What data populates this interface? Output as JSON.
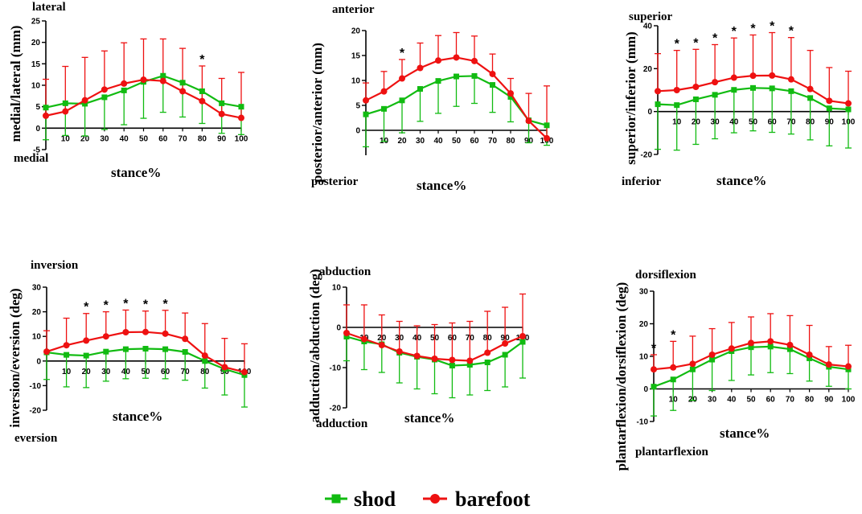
{
  "legend": {
    "shod_label": "shod",
    "barefoot_label": "barefoot",
    "shod_color": "#11bb11",
    "barefoot_color": "#ee1111"
  },
  "chart_data": [
    {
      "type": "line",
      "id": "ml",
      "ylabel": "medial/lateral (mm)",
      "xlabel": "stance%",
      "top_label": "lateral",
      "bottom_label": "medial",
      "ylim": [
        -5,
        25
      ],
      "yticks": [
        -5,
        0,
        5,
        10,
        15,
        20,
        25
      ],
      "x": [
        0,
        10,
        20,
        30,
        40,
        50,
        60,
        70,
        80,
        90,
        100
      ],
      "xtick_labels": [
        "10",
        "20",
        "30",
        "40",
        "50",
        "60",
        "70",
        "80",
        "90",
        "100"
      ],
      "significant_x": [
        80
      ],
      "series": [
        {
          "name": "shod",
          "values": [
            4.8,
            5.8,
            5.7,
            7.2,
            8.8,
            10.8,
            12.2,
            10.6,
            8.6,
            5.8,
            5.0
          ],
          "sd": [
            7.5,
            7.5,
            7.5,
            7.5,
            8.0,
            8.5,
            8.5,
            8.0,
            7.5,
            7.0,
            6.5
          ]
        },
        {
          "name": "barefoot",
          "values": [
            2.9,
            3.9,
            6.5,
            9.0,
            10.4,
            11.3,
            11.0,
            8.6,
            6.3,
            3.3,
            2.4
          ],
          "sd": [
            8.5,
            10.5,
            10.0,
            9.0,
            9.5,
            9.5,
            9.8,
            10.0,
            8.2,
            8.3,
            10.6
          ]
        }
      ]
    },
    {
      "type": "line",
      "id": "pa",
      "ylabel": "posterior/anterior (mm)",
      "xlabel": "stance%",
      "top_label": "anterior",
      "bottom_label": "posterior",
      "ylim": [
        -5,
        20
      ],
      "yticks": [
        0,
        5,
        10,
        15,
        20
      ],
      "x": [
        0,
        10,
        20,
        30,
        40,
        50,
        60,
        70,
        80,
        90,
        100
      ],
      "xtick_labels": [
        "10",
        "20",
        "30",
        "40",
        "50",
        "60",
        "70",
        "80",
        "90",
        "100"
      ],
      "significant_x": [
        20
      ],
      "series": [
        {
          "name": "shod",
          "values": [
            3.2,
            4.3,
            6.0,
            8.3,
            9.9,
            10.8,
            10.9,
            9.1,
            6.7,
            2.0,
            1.0
          ],
          "sd": [
            6.5,
            6.5,
            6.5,
            6.5,
            6.5,
            6.0,
            5.5,
            5.5,
            5.0,
            4.5,
            4.0
          ]
        },
        {
          "name": "barefoot",
          "values": [
            6.0,
            7.8,
            10.4,
            12.5,
            14.0,
            14.6,
            13.9,
            11.3,
            7.4,
            1.9,
            -1.6
          ],
          "sd": [
            3.5,
            4.0,
            3.8,
            5.0,
            5.0,
            5.0,
            5.0,
            4.0,
            3.0,
            5.5,
            10.5
          ]
        }
      ]
    },
    {
      "type": "line",
      "id": "si",
      "ylabel": "superior/inferior (mm)",
      "xlabel": "stance%",
      "top_label": "superior",
      "bottom_label": "inferior",
      "ylim": [
        -20,
        40
      ],
      "yticks": [
        -20,
        0,
        20,
        40
      ],
      "x": [
        0,
        10,
        20,
        30,
        40,
        50,
        60,
        70,
        80,
        90,
        100
      ],
      "xtick_labels": [
        "10",
        "20",
        "30",
        "40",
        "50",
        "60",
        "70",
        "80",
        "90",
        "100"
      ],
      "significant_x": [
        10,
        20,
        30,
        40,
        50,
        60,
        70
      ],
      "series": [
        {
          "name": "shod",
          "values": [
            3.4,
            3.0,
            5.7,
            7.8,
            10.1,
            11.0,
            10.8,
            9.5,
            6.3,
            1.5,
            1.0
          ],
          "sd": [
            21.0,
            21.0,
            21.0,
            20.5,
            20.0,
            20.0,
            20.5,
            20.0,
            19.5,
            17.5,
            18.0
          ]
        },
        {
          "name": "barefoot",
          "values": [
            9.5,
            10.0,
            11.5,
            13.7,
            15.8,
            16.7,
            16.8,
            15.0,
            10.5,
            5.0,
            3.8
          ],
          "sd": [
            17.5,
            18.5,
            17.5,
            17.5,
            18.5,
            19.0,
            20.0,
            19.5,
            18.0,
            15.5,
            15.0
          ]
        }
      ]
    },
    {
      "type": "line",
      "id": "ie",
      "ylabel": "inversion/eversion (deg)",
      "xlabel": "stance%",
      "top_label": "inversion",
      "bottom_label": "eversion",
      "ylim": [
        -20,
        30
      ],
      "yticks": [
        -20,
        -10,
        0,
        10,
        20,
        30
      ],
      "x": [
        0,
        10,
        20,
        30,
        40,
        50,
        60,
        70,
        80,
        90,
        100
      ],
      "xtick_labels": [
        "10",
        "20",
        "30",
        "40",
        "50",
        "60",
        "70",
        "80",
        "90",
        "100"
      ],
      "significant_x": [
        20,
        30,
        40,
        50,
        60
      ],
      "series": [
        {
          "name": "shod",
          "values": [
            3.5,
            2.5,
            2.2,
            3.8,
            4.8,
            5.0,
            4.8,
            3.7,
            0.0,
            -3.3,
            -5.7
          ],
          "sd": [
            11.0,
            13.0,
            13.0,
            12.0,
            12.0,
            12.0,
            12.0,
            11.5,
            11.0,
            10.5,
            13.0
          ]
        },
        {
          "name": "barefoot",
          "values": [
            3.8,
            6.4,
            8.3,
            10.0,
            11.7,
            11.8,
            11.1,
            9.0,
            2.2,
            -2.5,
            -4.5
          ],
          "sd": [
            8.5,
            11.0,
            11.0,
            10.0,
            9.0,
            8.5,
            9.5,
            10.5,
            13.0,
            11.7,
            11.5
          ]
        }
      ]
    },
    {
      "type": "line",
      "id": "aa",
      "ylabel": "adduction/abduction (deg)",
      "xlabel": "stance%",
      "top_label": "abduction",
      "bottom_label": "adduction",
      "ylim": [
        -20,
        10
      ],
      "yticks": [
        -20,
        -10,
        0,
        10
      ],
      "x": [
        0,
        10,
        20,
        30,
        40,
        50,
        60,
        70,
        80,
        90,
        100
      ],
      "xtick_labels": [
        "10",
        "20",
        "30",
        "40",
        "50",
        "60",
        "70",
        "80",
        "90",
        "100"
      ],
      "significant_x": [],
      "series": [
        {
          "name": "shod",
          "values": [
            -2.3,
            -3.5,
            -4.2,
            -6.3,
            -7.3,
            -8.0,
            -9.5,
            -9.3,
            -8.7,
            -6.8,
            -3.6
          ],
          "sd": [
            6.0,
            7.0,
            7.0,
            7.5,
            8.0,
            8.5,
            8.0,
            7.5,
            7.0,
            8.0,
            9.0
          ]
        },
        {
          "name": "barefoot",
          "values": [
            -1.4,
            -2.9,
            -4.4,
            -6.0,
            -7.1,
            -7.8,
            -8.1,
            -8.3,
            -6.3,
            -4.0,
            -2.2
          ],
          "sd": [
            7.0,
            8.5,
            7.5,
            7.5,
            7.5,
            8.5,
            9.2,
            9.8,
            10.3,
            9.0,
            10.5
          ]
        }
      ]
    },
    {
      "type": "line",
      "id": "pd",
      "ylabel": "plantarflexion/dorsiflexion (deg)",
      "xlabel": "stance%",
      "top_label": "dorsiflexion",
      "bottom_label": "plantarflexion",
      "ylim": [
        -10,
        30
      ],
      "yticks": [
        -10,
        0,
        10,
        20,
        30
      ],
      "x": [
        0,
        10,
        20,
        30,
        40,
        50,
        60,
        70,
        80,
        90,
        100
      ],
      "xtick_labels": [
        "10",
        "20",
        "30",
        "40",
        "50",
        "60",
        "70",
        "80",
        "90",
        "100"
      ],
      "significant_x": [
        0,
        10
      ],
      "series": [
        {
          "name": "shod",
          "values": [
            0.7,
            2.9,
            6.0,
            9.0,
            11.6,
            12.8,
            13.0,
            12.2,
            9.4,
            6.8,
            6.0
          ],
          "sd": [
            9.0,
            9.5,
            9.5,
            9.5,
            9.0,
            8.5,
            8.0,
            7.5,
            7.0,
            6.0,
            6.0
          ]
        },
        {
          "name": "barefoot",
          "values": [
            6.0,
            6.6,
            7.7,
            10.5,
            12.4,
            14.1,
            14.6,
            13.5,
            10.5,
            7.5,
            6.9
          ],
          "sd": [
            4.5,
            8.0,
            8.5,
            8.0,
            8.0,
            8.0,
            8.5,
            9.0,
            9.0,
            5.5,
            6.5
          ]
        }
      ]
    }
  ]
}
